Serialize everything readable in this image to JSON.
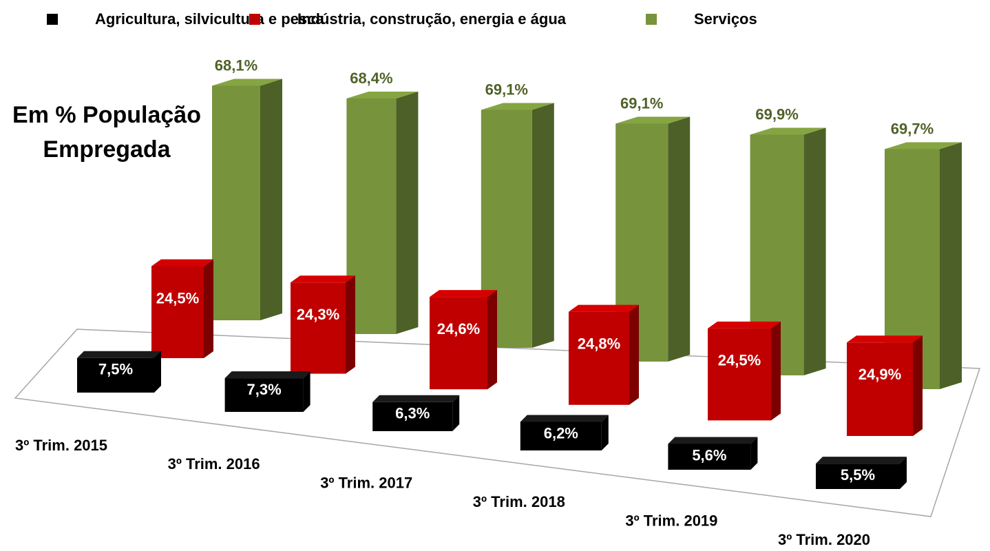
{
  "chart_data": {
    "type": "bar3d",
    "title": "Em % População Empregada",
    "categories": [
      "3º Trim. 2015",
      "3º Trim. 2016",
      "3º Trim. 2017",
      "3º Trim. 2018",
      "3º Trim. 2019",
      "3º Trim. 2020"
    ],
    "series": [
      {
        "name": "Agricultura, silvicultura e pesca",
        "color": "#000000",
        "values": [
          7.5,
          7.3,
          6.3,
          6.2,
          5.6,
          5.5
        ],
        "value_labels": [
          "7,5%",
          "7,3%",
          "6,3%",
          "6,2%",
          "5,6%",
          "5,5%"
        ]
      },
      {
        "name": "Indústria, construção, energia e água",
        "color": "#c00000",
        "values": [
          24.5,
          24.3,
          24.6,
          24.8,
          24.5,
          24.9
        ],
        "value_labels": [
          "24,5%",
          "24,3%",
          "24,6%",
          "24,8%",
          "24,5%",
          "24,9%"
        ]
      },
      {
        "name": "Serviços",
        "color": "#77933c",
        "values": [
          68.1,
          68.4,
          69.1,
          69.1,
          69.9,
          69.7
        ],
        "value_labels": [
          "68,1%",
          "68,4%",
          "69,1%",
          "69,1%",
          "69,9%",
          "69,7%"
        ]
      }
    ]
  }
}
